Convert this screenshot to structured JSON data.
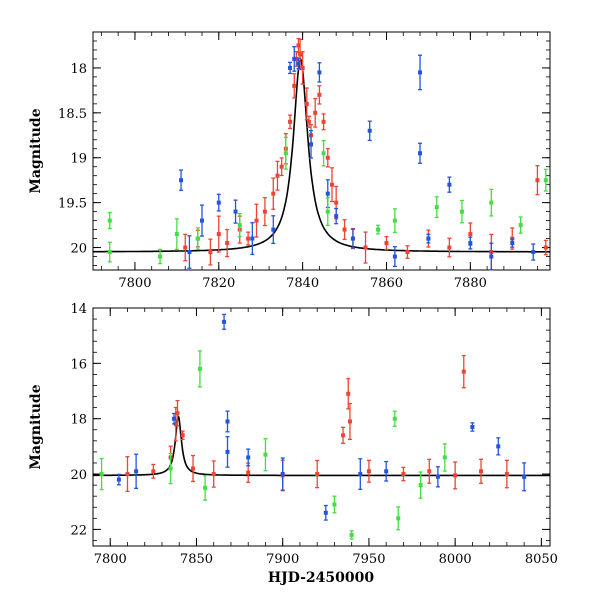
{
  "chart_data": [
    {
      "type": "scatter",
      "panel": "top",
      "title": "",
      "xlabel": "",
      "ylabel": "Magnitude",
      "xlim": [
        7790,
        7899
      ],
      "ylim": [
        20.25,
        17.6
      ],
      "y_inverted": true,
      "xticks": [
        7800,
        7820,
        7840,
        7860,
        7880
      ],
      "yticks": [
        18,
        18.5,
        19,
        19.5,
        20
      ],
      "ytick_labels": [
        "18",
        "18.5",
        "19",
        "19.5",
        "20"
      ],
      "series": [
        {
          "color": "#ee4433",
          "points": [
            [
              7812,
              20.0
            ],
            [
              7815,
              19.9
            ],
            [
              7818,
              20.05
            ],
            [
              7820,
              19.85
            ],
            [
              7822,
              19.95
            ],
            [
              7825,
              19.8
            ],
            [
              7827,
              19.9
            ],
            [
              7829,
              19.7
            ],
            [
              7831,
              19.6
            ],
            [
              7833,
              19.4
            ],
            [
              7834,
              19.2
            ],
            [
              7835,
              19.1
            ],
            [
              7836,
              18.9
            ],
            [
              7837,
              18.6
            ],
            [
              7838,
              18.2
            ],
            [
              7838.5,
              17.9
            ],
            [
              7839,
              17.75
            ],
            [
              7839.4,
              17.85
            ],
            [
              7840,
              18.0
            ],
            [
              7841,
              18.4
            ],
            [
              7841.5,
              18.6
            ],
            [
              7842,
              18.75
            ],
            [
              7843,
              18.5
            ],
            [
              7844,
              18.3
            ],
            [
              7845,
              18.6
            ],
            [
              7846,
              19.0
            ],
            [
              7847,
              19.3
            ],
            [
              7848,
              19.5
            ],
            [
              7850,
              19.8
            ],
            [
              7852,
              19.9
            ],
            [
              7855,
              20.0
            ],
            [
              7860,
              19.95
            ],
            [
              7865,
              20.05
            ],
            [
              7870,
              19.9
            ],
            [
              7875,
              20.0
            ],
            [
              7880,
              19.85
            ],
            [
              7885,
              20.05
            ],
            [
              7890,
              19.9
            ],
            [
              7896,
              19.25
            ],
            [
              7898,
              20.0
            ]
          ]
        },
        {
          "color": "#2255dd",
          "points": [
            [
              7811,
              19.25
            ],
            [
              7813,
              20.05
            ],
            [
              7816,
              19.7
            ],
            [
              7820,
              19.5
            ],
            [
              7824,
              19.6
            ],
            [
              7828,
              19.9
            ],
            [
              7833,
              19.8
            ],
            [
              7837,
              18.0
            ],
            [
              7838,
              17.9
            ],
            [
              7839,
              17.95
            ],
            [
              7842,
              18.85
            ],
            [
              7844,
              18.05
            ],
            [
              7846,
              19.4
            ],
            [
              7848,
              19.65
            ],
            [
              7852,
              19.9
            ],
            [
              7856,
              18.7
            ],
            [
              7862,
              20.1
            ],
            [
              7868,
              18.05
            ],
            [
              7868,
              18.95
            ],
            [
              7870,
              19.9
            ],
            [
              7875,
              19.3
            ],
            [
              7880,
              19.95
            ],
            [
              7885,
              20.1
            ],
            [
              7890,
              19.95
            ],
            [
              7895,
              20.05
            ]
          ]
        },
        {
          "color": "#44dd44",
          "points": [
            [
              7794,
              19.7
            ],
            [
              7794,
              20.05
            ],
            [
              7806,
              20.1
            ],
            [
              7810,
              19.85
            ],
            [
              7815,
              19.9
            ],
            [
              7825,
              19.75
            ],
            [
              7836,
              18.95
            ],
            [
              7845,
              18.95
            ],
            [
              7846,
              19.6
            ],
            [
              7858,
              19.8
            ],
            [
              7862,
              19.7
            ],
            [
              7872,
              19.55
            ],
            [
              7878,
              19.6
            ],
            [
              7885,
              19.5
            ],
            [
              7892,
              19.75
            ],
            [
              7898,
              19.25
            ]
          ]
        }
      ]
    },
    {
      "type": "scatter",
      "panel": "bottom",
      "title": "",
      "xlabel": "HJD-2450000",
      "ylabel": "Magnitude",
      "xlim": [
        7790,
        8055
      ],
      "ylim": [
        22.6,
        14.0
      ],
      "y_inverted": true,
      "xticks": [
        7800,
        7850,
        7900,
        7950,
        8000,
        8050
      ],
      "yticks": [
        14,
        16,
        18,
        20,
        22
      ],
      "series": [
        {
          "color": "#ee4433",
          "points": [
            [
              7810,
              20.0
            ],
            [
              7825,
              19.9
            ],
            [
              7835,
              19.4
            ],
            [
              7838,
              18.2
            ],
            [
              7839,
              17.8
            ],
            [
              7842,
              18.6
            ],
            [
              7848,
              19.8
            ],
            [
              7860,
              20.0
            ],
            [
              7880,
              19.95
            ],
            [
              7900,
              20.05
            ],
            [
              7920,
              20.0
            ],
            [
              7935,
              18.6
            ],
            [
              7938,
              17.1
            ],
            [
              7939,
              18.1
            ],
            [
              7950,
              19.9
            ],
            [
              7970,
              20.0
            ],
            [
              7985,
              19.9
            ],
            [
              8000,
              20.05
            ],
            [
              8005,
              16.3
            ],
            [
              8015,
              19.9
            ],
            [
              8030,
              20.0
            ]
          ]
        },
        {
          "color": "#2255dd",
          "points": [
            [
              7805,
              20.2
            ],
            [
              7815,
              19.9
            ],
            [
              7837,
              18.0
            ],
            [
              7866,
              14.5
            ],
            [
              7868,
              18.1
            ],
            [
              7868,
              19.2
            ],
            [
              7880,
              19.4
            ],
            [
              7900,
              20.0
            ],
            [
              7925,
              21.4
            ],
            [
              7945,
              20.0
            ],
            [
              7960,
              19.9
            ],
            [
              7990,
              20.1
            ],
            [
              8010,
              18.3
            ],
            [
              8025,
              19.0
            ],
            [
              8040,
              20.1
            ]
          ]
        },
        {
          "color": "#44dd44",
          "points": [
            [
              7795,
              20.0
            ],
            [
              7835,
              19.8
            ],
            [
              7852,
              16.2
            ],
            [
              7855,
              20.5
            ],
            [
              7890,
              19.3
            ],
            [
              7930,
              21.1
            ],
            [
              7940,
              22.2
            ],
            [
              7965,
              18.0
            ],
            [
              7967,
              21.6
            ],
            [
              7980,
              20.4
            ],
            [
              7994,
              19.4
            ]
          ]
        }
      ]
    }
  ]
}
